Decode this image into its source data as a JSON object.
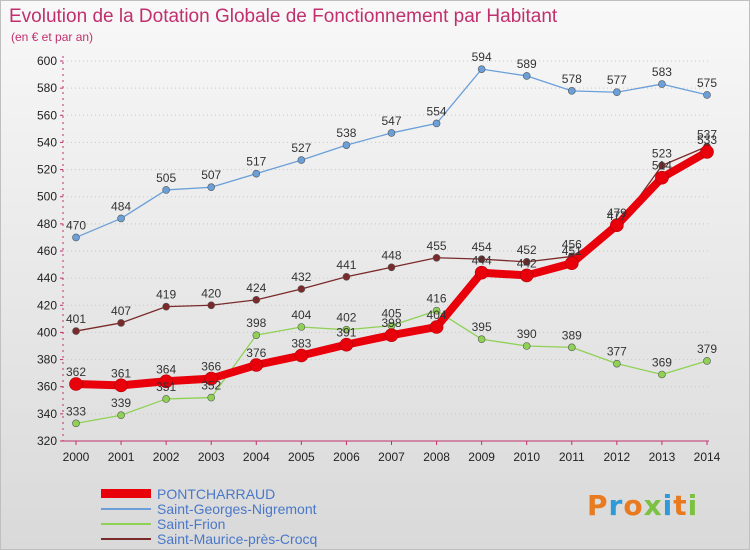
{
  "header": {
    "title": "Evolution de la Dotation Globale de Fonctionnement par Habitant",
    "subtitle": "(en € et par an)"
  },
  "brand": {
    "text": "Proxiti",
    "colors": [
      "#e87a1f",
      "#2f9ad8",
      "#e87a1f",
      "#7cc242",
      "#2f9ad8",
      "#e87a1f",
      "#7cc242"
    ]
  },
  "chart_data": {
    "type": "line",
    "x": [
      2000,
      2001,
      2002,
      2003,
      2004,
      2005,
      2006,
      2007,
      2008,
      2009,
      2010,
      2011,
      2012,
      2013,
      2014
    ],
    "ylim": [
      320,
      600
    ],
    "yticks": [
      320,
      340,
      360,
      380,
      400,
      420,
      440,
      460,
      480,
      500,
      520,
      540,
      560,
      580,
      600
    ],
    "grid": "dotted horizontal",
    "legend_position": "bottom-left",
    "series": [
      {
        "name": "PONTCHARRAUD",
        "color": "#e8000b",
        "emphasis": true,
        "values": [
          362,
          361,
          364,
          366,
          376,
          383,
          391,
          398,
          404,
          444,
          442,
          451,
          479,
          514,
          533
        ],
        "labels": [
          "362",
          "361",
          "364",
          "366",
          "376",
          "383",
          "391",
          "398",
          "404",
          "444",
          "442",
          "451",
          "479",
          "514",
          "533"
        ]
      },
      {
        "name": "Saint-Georges-Nigremont",
        "color": "#6a9fd8",
        "values": [
          470,
          484,
          505,
          507,
          517,
          527,
          538,
          547,
          554,
          594,
          589,
          578,
          577,
          583,
          575
        ],
        "labels": [
          "470",
          "484",
          "505",
          "507",
          "517",
          "527",
          "538",
          "547",
          "554",
          "594",
          "589",
          "578",
          "577",
          "583",
          "575"
        ]
      },
      {
        "name": "Saint-Frion",
        "color": "#8fd155",
        "values": [
          333,
          339,
          351,
          352,
          398,
          404,
          402,
          405,
          416,
          395,
          390,
          389,
          377,
          369,
          379
        ],
        "labels": [
          "333",
          "339",
          "351",
          "352",
          "398",
          "404",
          "402",
          "405",
          "416",
          "395",
          "390",
          "389",
          "377",
          "369",
          "379"
        ]
      },
      {
        "name": "Saint-Maurice-près-Crocq",
        "color": "#7a2a2a",
        "values": [
          401,
          407,
          419,
          420,
          424,
          432,
          441,
          448,
          455,
          454,
          452,
          456,
          477,
          523,
          537
        ],
        "labels": [
          "401",
          "407",
          "419",
          "420",
          "424",
          "432",
          "441",
          "448",
          "455",
          "454",
          "452",
          "456",
          "477",
          "523",
          "537"
        ]
      }
    ]
  }
}
